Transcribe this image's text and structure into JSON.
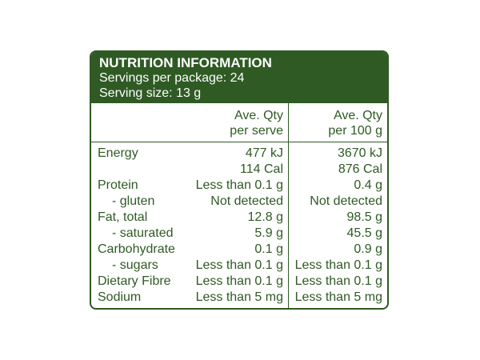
{
  "panel": {
    "title": "NUTRITION INFORMATION",
    "servings": "Servings per package: 24",
    "serving_size": "Serving size: 13 g"
  },
  "columns": {
    "serve_line1": "Ave. Qty",
    "serve_line2": "per serve",
    "per100_line1": "Ave. Qty",
    "per100_line2": "per 100 g"
  },
  "rows": [
    {
      "name": "Energy",
      "serve": "477 kJ",
      "per100": "3670 kJ",
      "sub": false
    },
    {
      "name": "",
      "serve": "114 Cal",
      "per100": "876 Cal",
      "sub": false
    },
    {
      "name": "Protein",
      "serve": "Less than 0.1 g",
      "per100": "0.4 g",
      "sub": false
    },
    {
      "name": "- gluten",
      "serve": "Not detected",
      "per100": "Not detected",
      "sub": true
    },
    {
      "name": "Fat, total",
      "serve": "12.8 g",
      "per100": "98.5 g",
      "sub": false
    },
    {
      "name": "- saturated",
      "serve": "5.9 g",
      "per100": "45.5 g",
      "sub": true
    },
    {
      "name": "Carbohydrate",
      "serve": "0.1 g",
      "per100": "0.9 g",
      "sub": false
    },
    {
      "name": "- sugars",
      "serve": "Less than 0.1 g",
      "per100": "Less than 0.1 g",
      "sub": true
    },
    {
      "name": "Dietary Fibre",
      "serve": "Less than 0.1 g",
      "per100": "Less than 0.1 g",
      "sub": false
    },
    {
      "name": "Sodium",
      "serve": "Less than 5 mg",
      "per100": "Less than 5 mg",
      "sub": false
    }
  ],
  "colors": {
    "brand_green": "#2f5a24",
    "background": "#ffffff"
  }
}
